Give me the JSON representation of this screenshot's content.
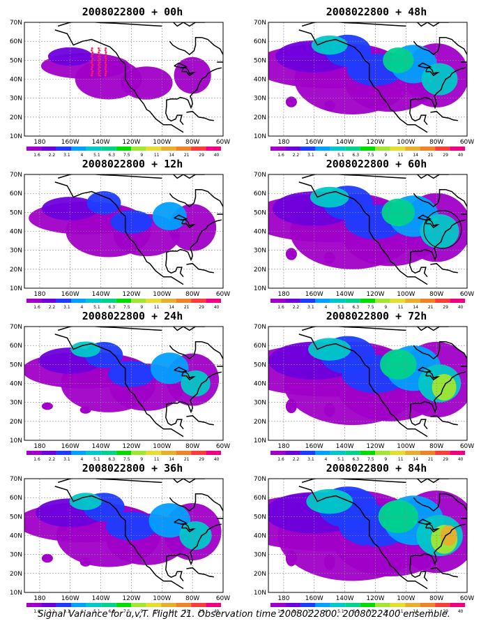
{
  "figure": {
    "caption": "Signal Variance for u,v,T. Flight 21. Observation time 2008022800. 2008022400 ensemble."
  },
  "axes": {
    "lat_labels": [
      "10N",
      "20N",
      "30N",
      "40N",
      "50N",
      "60N",
      "70N"
    ],
    "lon_labels": [
      "180",
      "160W",
      "140W",
      "120W",
      "100W",
      "80W",
      "60W"
    ]
  },
  "colorbar": {
    "levels": [
      "1.6",
      "2.2",
      "3.1",
      "4",
      "5.1",
      "6.3",
      "7.5",
      "9",
      "11",
      "14",
      "21",
      "29",
      "40"
    ],
    "colors": [
      "#a000c8",
      "#6e00dc",
      "#1e3cff",
      "#00a0ff",
      "#00c8c8",
      "#00d28c",
      "#00dc00",
      "#a0e632",
      "#e6dc32",
      "#e6af2d",
      "#f08228",
      "#fa3c3c",
      "#f00082"
    ]
  },
  "panels": [
    {
      "title": "2008022800 + 00h",
      "lead_hours": 0,
      "intensity": 0.15,
      "circle": false,
      "obs_points": true
    },
    {
      "title": "2008022800 + 48h",
      "lead_hours": 48,
      "intensity": 0.55,
      "circle": false,
      "obs_points": false
    },
    {
      "title": "2008022800 + 12h",
      "lead_hours": 12,
      "intensity": 0.3,
      "circle": false,
      "obs_points": false
    },
    {
      "title": "2008022800 + 60h",
      "lead_hours": 60,
      "intensity": 0.62,
      "circle": true,
      "obs_points": false
    },
    {
      "title": "2008022800 + 24h",
      "lead_hours": 24,
      "intensity": 0.38,
      "circle": false,
      "obs_points": false
    },
    {
      "title": "2008022800 + 72h",
      "lead_hours": 72,
      "intensity": 0.72,
      "circle": false,
      "obs_points": false
    },
    {
      "title": "2008022800 + 36h",
      "lead_hours": 36,
      "intensity": 0.45,
      "circle": false,
      "obs_points": false
    },
    {
      "title": "2008022800 + 84h",
      "lead_hours": 84,
      "intensity": 0.82,
      "circle": false,
      "obs_points": false
    }
  ]
}
